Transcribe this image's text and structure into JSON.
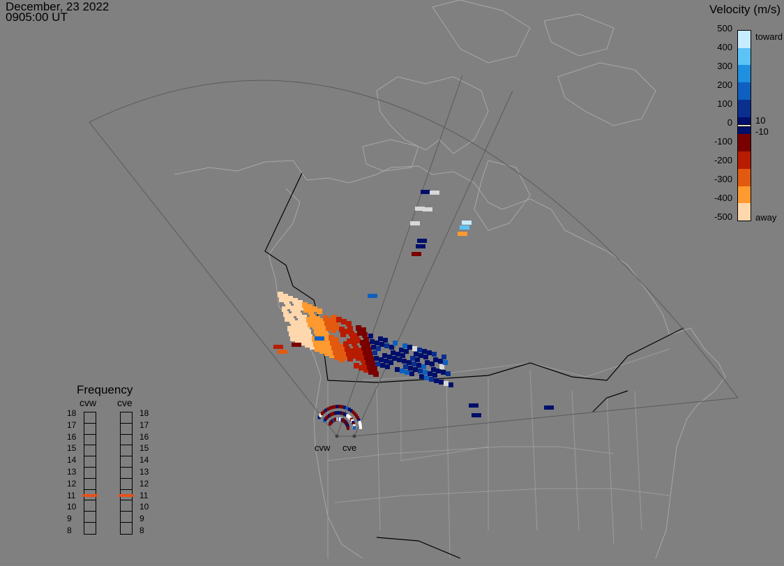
{
  "header": {
    "date": "December, 23 2022",
    "time": "0905:00 UT"
  },
  "velocity_scale": {
    "title": "Velocity (m/s)",
    "ticks": [
      "500",
      "400",
      "300",
      "200",
      "100",
      "0",
      "-100",
      "-200",
      "-300",
      "-400",
      "-500"
    ],
    "inner_labels": [
      "10",
      "-10"
    ],
    "end_labels": {
      "top": "toward",
      "bottom": "away"
    },
    "colors": [
      "#c8ecff",
      "#5cc4f5",
      "#1f8fe0",
      "#0e5fbf",
      "#0a2f8f",
      "#000f6a",
      "#7a0000",
      "#b81c00",
      "#e25a10",
      "#ff9a30",
      "#ffd7ad"
    ]
  },
  "frequency": {
    "title": "Frequency",
    "radars": [
      "cvw",
      "cve"
    ],
    "channels": [
      "18",
      "17",
      "16",
      "15",
      "14",
      "13",
      "12",
      "11",
      "10",
      "9",
      "8"
    ],
    "active": {
      "cvw": "11",
      "cve": "11"
    }
  },
  "radar_sites": [
    "cvw",
    "cve"
  ]
}
